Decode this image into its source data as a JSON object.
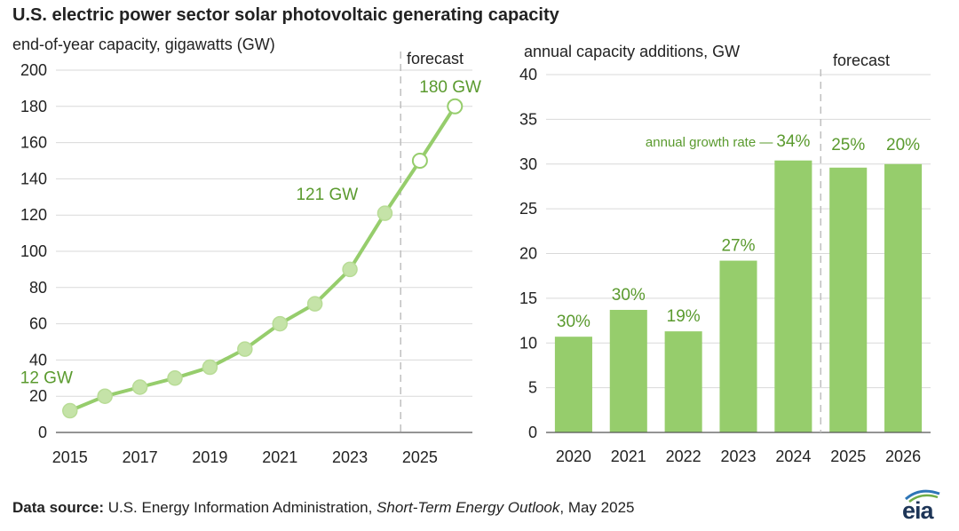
{
  "title": "U.S. electric power sector solar photovoltaic generating capacity",
  "source": {
    "label": "Data source:",
    "text_before": "U.S. Energy Information Administration,",
    "publication": "Short-Term Energy Outlook",
    "text_after": ", May 2025"
  },
  "logo_text": "eia",
  "colors": {
    "series": "#96cd6c",
    "series_dark": "#8cc763",
    "label_green": "#5a9a2e",
    "axis": "#555555",
    "grid": "#d9d9d9",
    "forecast_line": "#bfbfbf"
  },
  "chart_data": [
    {
      "type": "line",
      "title": "",
      "ylabel": "end-of-year capacity, gigawatts (GW)",
      "xlabel": "",
      "ylim": [
        0,
        200
      ],
      "yticks": [
        0,
        20,
        40,
        60,
        80,
        100,
        120,
        140,
        160,
        180,
        200
      ],
      "xticks": [
        2015,
        2017,
        2019,
        2021,
        2023,
        2025
      ],
      "grid": true,
      "forecast_label": "forecast",
      "forecast_from": 2025,
      "series": [
        {
          "x": [
            2015,
            2016,
            2017,
            2018,
            2019,
            2020,
            2021,
            2022,
            2023,
            2024,
            2025,
            2026
          ],
          "values": [
            12,
            20,
            25,
            30,
            36,
            46,
            60,
            71,
            90,
            121,
            150,
            180
          ]
        }
      ],
      "annotations": [
        {
          "text": "12 GW",
          "x": 2015,
          "y": 12
        },
        {
          "text": "121 GW",
          "x": 2024,
          "y": 121
        },
        {
          "text": "180 GW",
          "x": 2026,
          "y": 180
        }
      ]
    },
    {
      "type": "bar",
      "title": "",
      "ylabel": "annual capacity additions, GW",
      "xlabel": "",
      "ylim": [
        0,
        40
      ],
      "yticks": [
        0,
        5,
        10,
        15,
        20,
        25,
        30,
        35,
        40
      ],
      "grid": true,
      "forecast_label": "forecast",
      "forecast_from": "2025",
      "categories": [
        "2020",
        "2021",
        "2022",
        "2023",
        "2024",
        "2025",
        "2026"
      ],
      "values": [
        10.7,
        13.7,
        11.3,
        19.2,
        30.4,
        29.6,
        30.0
      ],
      "data_labels": [
        "30%",
        "30%",
        "19%",
        "27%",
        "34%",
        "25%",
        "20%"
      ],
      "growth_label": "annual  growth rate —"
    }
  ]
}
